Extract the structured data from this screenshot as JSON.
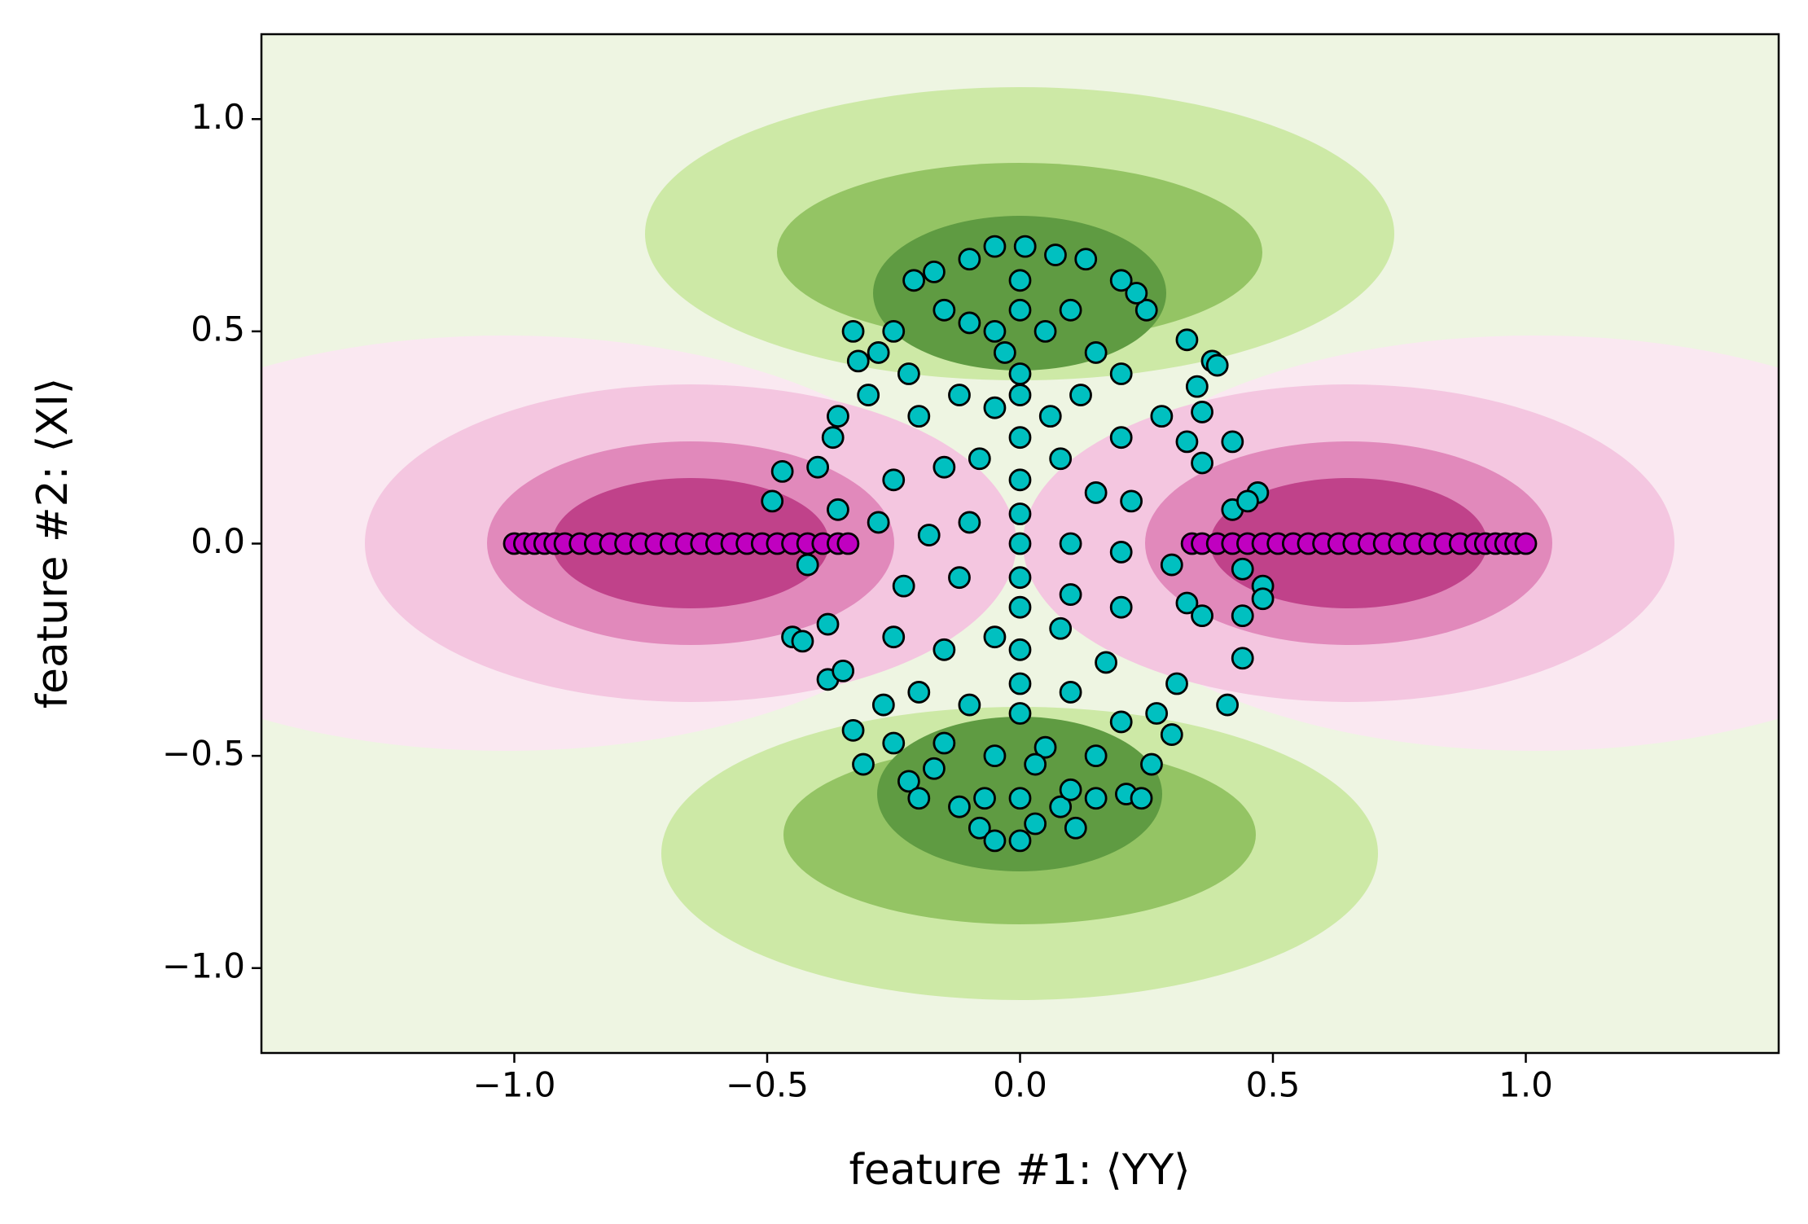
{
  "chart_data": {
    "type": "scatter",
    "xlabel": "feature #1: ⟨YY⟩",
    "ylabel": "feature #2: ⟨XI⟩",
    "xlim": [
      -1.5,
      1.5
    ],
    "ylim": [
      -1.2,
      1.2
    ],
    "xticks": [
      {
        "value": -1,
        "label": "−1.0"
      },
      {
        "value": -0.5,
        "label": "−0.5"
      },
      {
        "value": 0,
        "label": "0.0"
      },
      {
        "value": 0.5,
        "label": "0.5"
      },
      {
        "value": 1,
        "label": "1.0"
      }
    ],
    "yticks": [
      {
        "value": -1,
        "label": "−1.0"
      },
      {
        "value": -0.5,
        "label": "−0.5"
      },
      {
        "value": 0,
        "label": "0.0"
      },
      {
        "value": 0.5,
        "label": "0.5"
      },
      {
        "value": 1,
        "label": "1.0"
      }
    ],
    "grid": false,
    "series": [
      {
        "color": "#c000c0",
        "x": [
          -1.0,
          -0.98,
          -0.96,
          -0.94,
          -0.92,
          -0.9,
          -0.87,
          -0.84,
          -0.81,
          -0.78,
          -0.75,
          -0.72,
          -0.69,
          -0.66,
          -0.63,
          -0.6,
          -0.57,
          -0.54,
          -0.51,
          -0.48,
          -0.45,
          -0.42,
          -0.39,
          -0.36,
          -0.34,
          0.34,
          0.36,
          0.39,
          0.42,
          0.45,
          0.48,
          0.51,
          0.54,
          0.57,
          0.6,
          0.63,
          0.66,
          0.69,
          0.72,
          0.75,
          0.78,
          0.81,
          0.84,
          0.87,
          0.9,
          0.92,
          0.94,
          0.96,
          0.98,
          1.0
        ],
        "y": [
          0,
          0,
          0,
          0,
          0,
          0,
          0,
          0,
          0,
          0,
          0,
          0,
          0,
          0,
          0,
          0,
          0,
          0,
          0,
          0,
          0,
          0,
          0,
          0,
          0,
          0,
          0,
          0,
          0,
          0,
          0,
          0,
          0,
          0,
          0,
          0,
          0,
          0,
          0,
          0,
          0,
          0,
          0,
          0,
          0,
          0,
          0,
          0,
          0,
          0
        ]
      },
      {
        "color": "#00c0c0",
        "x": [
          -0.33,
          -0.32,
          -0.3,
          -0.36,
          -0.37,
          -0.47,
          -0.49,
          -0.4,
          -0.36,
          -0.42,
          -0.45,
          -0.43,
          -0.38,
          -0.38,
          -0.35,
          -0.33,
          -0.31,
          -0.27,
          -0.25,
          -0.22,
          -0.2,
          -0.17,
          -0.12,
          -0.08,
          -0.05,
          0,
          0.03,
          0.08,
          0.11,
          0.15,
          0.21,
          0.24,
          0.26,
          0.3,
          0.27,
          0.31,
          0.33,
          0.3,
          0.36,
          0.44,
          0.44,
          0.41,
          0.44,
          0.48,
          0.48,
          0.42,
          0.47,
          0.45,
          0.36,
          0.33,
          0.42,
          0.35,
          0.36,
          0.38,
          0.33,
          0.39,
          0.28,
          0.25,
          0.23,
          0.2,
          0.13,
          0.07,
          0.01,
          -0.05,
          -0.1,
          -0.17,
          -0.21,
          -0.25,
          -0.28,
          -0.22,
          -0.15,
          -0.1,
          -0.05,
          0,
          0.05,
          0.1,
          0.15,
          0.2,
          -0.2,
          -0.12,
          -0.05,
          0,
          0.06,
          0.12,
          0.2,
          -0.25,
          -0.15,
          -0.08,
          0,
          0.08,
          0.15,
          0.22,
          -0.28,
          -0.18,
          -0.1,
          0,
          0.1,
          0.2,
          -0.23,
          -0.12,
          0,
          0.1,
          0.2,
          -0.25,
          -0.15,
          -0.05,
          0,
          0.08,
          0.17,
          -0.2,
          -0.1,
          0,
          0.1,
          0.2,
          -0.15,
          -0.05,
          0.05,
          0.15,
          0,
          -0.07,
          0.1,
          0,
          0,
          0,
          0,
          0,
          0,
          -0.03,
          0.03
        ],
        "y": [
          0.5,
          0.43,
          0.35,
          0.3,
          0.25,
          0.17,
          0.1,
          0.18,
          0.08,
          -0.05,
          -0.22,
          -0.23,
          -0.19,
          -0.32,
          -0.3,
          -0.44,
          -0.52,
          -0.38,
          -0.47,
          -0.56,
          -0.6,
          -0.53,
          -0.62,
          -0.67,
          -0.7,
          -0.7,
          -0.66,
          -0.62,
          -0.67,
          -0.6,
          -0.59,
          -0.6,
          -0.52,
          -0.45,
          -0.4,
          -0.33,
          -0.14,
          -0.05,
          -0.17,
          -0.17,
          -0.27,
          -0.38,
          -0.06,
          -0.1,
          -0.13,
          0.08,
          0.12,
          0.1,
          0.19,
          0.24,
          0.24,
          0.37,
          0.31,
          0.43,
          0.48,
          0.42,
          0.3,
          0.55,
          0.59,
          0.62,
          0.67,
          0.68,
          0.7,
          0.7,
          0.67,
          0.64,
          0.62,
          0.5,
          0.45,
          0.4,
          0.55,
          0.52,
          0.5,
          0.55,
          0.5,
          0.55,
          0.45,
          0.4,
          0.3,
          0.35,
          0.32,
          0.35,
          0.3,
          0.35,
          0.25,
          0.15,
          0.18,
          0.2,
          0.15,
          0.2,
          0.12,
          0.1,
          0.05,
          0.02,
          0.05,
          0.07,
          0,
          -0.02,
          -0.1,
          -0.08,
          -0.08,
          -0.12,
          -0.15,
          -0.22,
          -0.25,
          -0.22,
          -0.25,
          -0.2,
          -0.28,
          -0.35,
          -0.38,
          -0.4,
          -0.35,
          -0.42,
          -0.47,
          -0.5,
          -0.48,
          -0.5,
          -0.6,
          -0.6,
          -0.58,
          0.62,
          0.4,
          0.25,
          0,
          -0.15,
          -0.33,
          0.45,
          -0.52
        ]
      }
    ]
  }
}
